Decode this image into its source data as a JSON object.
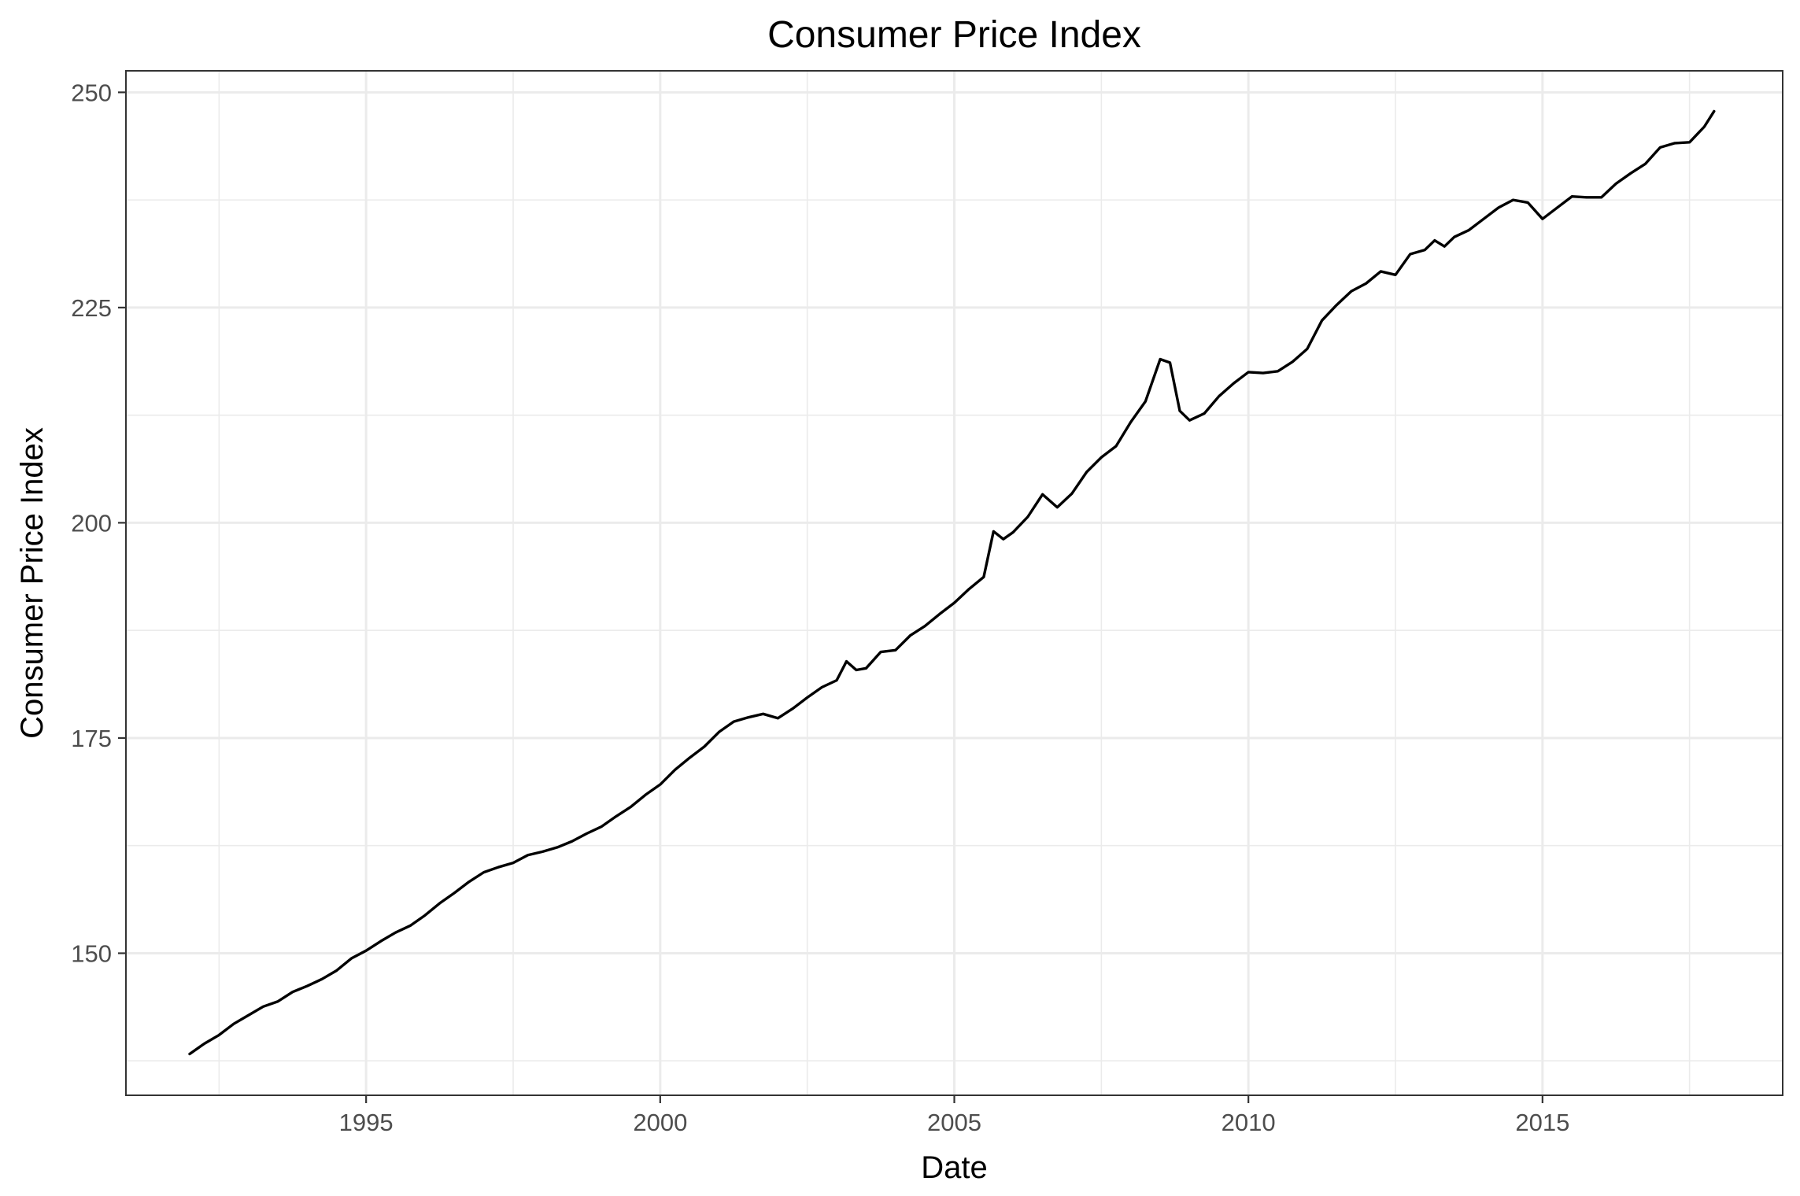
{
  "chart_data": {
    "type": "line",
    "title": "Consumer Price Index",
    "xlabel": "Date",
    "ylabel": "Consumer Price Index",
    "x_type": "date",
    "xlim": [
      "1990-12-01",
      "2019-02-01"
    ],
    "ylim": [
      133.5,
      252.5
    ],
    "x_ticks": [
      {
        "date": "1995-01-01",
        "label": "1995"
      },
      {
        "date": "2000-01-01",
        "label": "2000"
      },
      {
        "date": "2005-01-01",
        "label": "2005"
      },
      {
        "date": "2010-01-01",
        "label": "2010"
      },
      {
        "date": "2015-01-01",
        "label": "2015"
      }
    ],
    "x_minor_ticks": [
      "1992-07-01",
      "1997-07-01",
      "2002-07-01",
      "2007-07-01",
      "2012-07-01",
      "2017-07-01"
    ],
    "y_ticks": [
      150,
      175,
      200,
      225,
      250
    ],
    "y_minor_ticks": [
      137.5,
      162.5,
      187.5,
      212.5,
      237.5
    ],
    "grid": true,
    "line_color": "#000000",
    "series": [
      {
        "points": [
          [
            "1992-01-01",
            138.3
          ],
          [
            "1992-04-01",
            139.5
          ],
          [
            "1992-07-01",
            140.5
          ],
          [
            "1992-10-01",
            141.8
          ],
          [
            "1993-01-01",
            142.8
          ],
          [
            "1993-04-01",
            143.8
          ],
          [
            "1993-07-01",
            144.4
          ],
          [
            "1993-10-01",
            145.5
          ],
          [
            "1994-01-01",
            146.2
          ],
          [
            "1994-04-01",
            147.0
          ],
          [
            "1994-07-01",
            148.0
          ],
          [
            "1994-10-01",
            149.4
          ],
          [
            "1995-01-01",
            150.3
          ],
          [
            "1995-04-01",
            151.4
          ],
          [
            "1995-07-01",
            152.4
          ],
          [
            "1995-10-01",
            153.2
          ],
          [
            "1996-01-01",
            154.4
          ],
          [
            "1996-04-01",
            155.8
          ],
          [
            "1996-07-01",
            157.0
          ],
          [
            "1996-10-01",
            158.3
          ],
          [
            "1997-01-01",
            159.4
          ],
          [
            "1997-04-01",
            160.0
          ],
          [
            "1997-07-01",
            160.5
          ],
          [
            "1997-10-01",
            161.4
          ],
          [
            "1998-01-01",
            161.8
          ],
          [
            "1998-04-01",
            162.3
          ],
          [
            "1998-07-01",
            163.0
          ],
          [
            "1998-10-01",
            163.9
          ],
          [
            "1999-01-01",
            164.7
          ],
          [
            "1999-04-01",
            165.9
          ],
          [
            "1999-07-01",
            167.0
          ],
          [
            "1999-10-01",
            168.4
          ],
          [
            "2000-01-01",
            169.6
          ],
          [
            "2000-04-01",
            171.3
          ],
          [
            "2000-07-01",
            172.7
          ],
          [
            "2000-10-01",
            174.0
          ],
          [
            "2001-01-01",
            175.7
          ],
          [
            "2001-04-01",
            176.9
          ],
          [
            "2001-07-01",
            177.4
          ],
          [
            "2001-10-01",
            177.8
          ],
          [
            "2002-01-01",
            177.3
          ],
          [
            "2002-04-01",
            178.4
          ],
          [
            "2002-07-01",
            179.7
          ],
          [
            "2002-10-01",
            180.9
          ],
          [
            "2003-01-01",
            181.7
          ],
          [
            "2003-03-01",
            183.9
          ],
          [
            "2003-05-01",
            182.9
          ],
          [
            "2003-07-01",
            183.1
          ],
          [
            "2003-10-01",
            185.0
          ],
          [
            "2004-01-01",
            185.2
          ],
          [
            "2004-04-01",
            186.9
          ],
          [
            "2004-07-01",
            188.0
          ],
          [
            "2004-10-01",
            189.4
          ],
          [
            "2005-01-01",
            190.7
          ],
          [
            "2005-04-01",
            192.3
          ],
          [
            "2005-07-01",
            193.7
          ],
          [
            "2005-09-01",
            199.0
          ],
          [
            "2005-11-01",
            198.1
          ],
          [
            "2006-01-01",
            198.9
          ],
          [
            "2006-04-01",
            200.7
          ],
          [
            "2006-07-01",
            203.3
          ],
          [
            "2006-10-01",
            201.8
          ],
          [
            "2007-01-01",
            203.4
          ],
          [
            "2007-04-01",
            205.9
          ],
          [
            "2007-07-01",
            207.6
          ],
          [
            "2007-10-01",
            208.9
          ],
          [
            "2008-01-01",
            211.7
          ],
          [
            "2008-04-01",
            214.1
          ],
          [
            "2008-07-01",
            219.0
          ],
          [
            "2008-09-01",
            218.6
          ],
          [
            "2008-11-01",
            213.0
          ],
          [
            "2009-01-01",
            211.9
          ],
          [
            "2009-04-01",
            212.7
          ],
          [
            "2009-07-01",
            214.7
          ],
          [
            "2009-10-01",
            216.2
          ],
          [
            "2010-01-01",
            217.5
          ],
          [
            "2010-04-01",
            217.4
          ],
          [
            "2010-07-01",
            217.6
          ],
          [
            "2010-10-01",
            218.7
          ],
          [
            "2011-01-01",
            220.2
          ],
          [
            "2011-04-01",
            223.5
          ],
          [
            "2011-07-01",
            225.3
          ],
          [
            "2011-10-01",
            226.9
          ],
          [
            "2012-01-01",
            227.8
          ],
          [
            "2012-04-01",
            229.2
          ],
          [
            "2012-07-01",
            228.8
          ],
          [
            "2012-10-01",
            231.2
          ],
          [
            "2013-01-01",
            231.7
          ],
          [
            "2013-03-01",
            232.8
          ],
          [
            "2013-05-01",
            232.1
          ],
          [
            "2013-07-01",
            233.2
          ],
          [
            "2013-10-01",
            234.0
          ],
          [
            "2014-01-01",
            235.3
          ],
          [
            "2014-04-01",
            236.6
          ],
          [
            "2014-07-01",
            237.5
          ],
          [
            "2014-10-01",
            237.2
          ],
          [
            "2015-01-01",
            235.3
          ],
          [
            "2015-04-01",
            236.6
          ],
          [
            "2015-07-01",
            237.9
          ],
          [
            "2015-10-01",
            237.8
          ],
          [
            "2016-01-01",
            237.8
          ],
          [
            "2016-04-01",
            239.4
          ],
          [
            "2016-07-01",
            240.6
          ],
          [
            "2016-10-01",
            241.7
          ],
          [
            "2017-01-01",
            243.6
          ],
          [
            "2017-04-01",
            244.1
          ],
          [
            "2017-07-01",
            244.2
          ],
          [
            "2017-10-01",
            246.0
          ],
          [
            "2017-12-01",
            247.8
          ]
        ]
      }
    ]
  }
}
